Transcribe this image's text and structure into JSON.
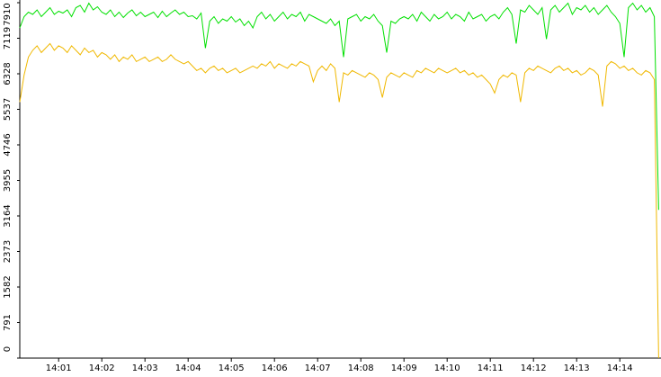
{
  "chart_data": {
    "type": "line",
    "categories": [
      null,
      null,
      null,
      null,
      null,
      null,
      null,
      null,
      null,
      "14:01",
      null,
      null,
      null,
      null,
      null,
      null,
      null,
      null,
      null,
      "14:02",
      null,
      null,
      null,
      null,
      null,
      null,
      null,
      null,
      null,
      "14:03",
      null,
      null,
      null,
      null,
      null,
      null,
      null,
      null,
      null,
      "14:04",
      null,
      null,
      null,
      null,
      null,
      null,
      null,
      null,
      null,
      "14:05",
      null,
      null,
      null,
      null,
      null,
      null,
      null,
      null,
      null,
      "14:06",
      null,
      null,
      null,
      null,
      null,
      null,
      null,
      null,
      null,
      "14:07",
      null,
      null,
      null,
      null,
      null,
      null,
      null,
      null,
      null,
      "14:08",
      null,
      null,
      null,
      null,
      null,
      null,
      null,
      null,
      null,
      "14:09",
      null,
      null,
      null,
      null,
      null,
      null,
      null,
      null,
      null,
      "14:10",
      null,
      null,
      null,
      null,
      null,
      null,
      null,
      null,
      null,
      "14:11",
      null,
      null,
      null,
      null,
      null,
      null,
      null,
      null,
      null,
      "14:12",
      null,
      null,
      null,
      null,
      null,
      null,
      null,
      null,
      null,
      "14:13",
      null,
      null,
      null,
      null,
      null,
      null,
      null,
      null,
      null,
      "14:14",
      null,
      null,
      null,
      null,
      null,
      null,
      null,
      null,
      null
    ],
    "series": [
      {
        "color": "#00e000",
        "values": [
          7350,
          7600,
          7700,
          7650,
          7750,
          7600,
          7700,
          7800,
          7650,
          7720,
          7680,
          7750,
          7600,
          7800,
          7850,
          7700,
          7900,
          7750,
          7820,
          7700,
          7650,
          7750,
          7600,
          7700,
          7580,
          7680,
          7750,
          7620,
          7700,
          7600,
          7650,
          7700,
          7580,
          7720,
          7600,
          7680,
          7750,
          7650,
          7700,
          7600,
          7620,
          7550,
          7680,
          6900,
          7500,
          7600,
          7450,
          7550,
          7500,
          7600,
          7480,
          7550,
          7400,
          7500,
          7350,
          7600,
          7700,
          7550,
          7650,
          7500,
          7600,
          7700,
          7550,
          7650,
          7600,
          7700,
          7500,
          7650,
          7600,
          7550,
          7500,
          7450,
          7550,
          7400,
          7500,
          6700,
          7550,
          7600,
          7650,
          7500,
          7600,
          7550,
          7650,
          7500,
          7400,
          6800,
          7500,
          7450,
          7550,
          7600,
          7550,
          7650,
          7500,
          7700,
          7600,
          7500,
          7650,
          7550,
          7600,
          7700,
          7550,
          7650,
          7600,
          7500,
          7700,
          7550,
          7600,
          7650,
          7500,
          7600,
          7650,
          7550,
          7700,
          7800,
          7650,
          7000,
          7750,
          7700,
          7850,
          7750,
          7650,
          7800,
          7100,
          7750,
          7850,
          7700,
          7800,
          7900,
          7650,
          7800,
          7750,
          7850,
          7700,
          7800,
          7650,
          7750,
          7850,
          7700,
          7600,
          7450,
          6700,
          7800,
          7900,
          7750,
          7850,
          7700,
          7800,
          7600,
          3300
        ]
      },
      {
        "color": "#f0b800",
        "values": [
          5700,
          6300,
          6700,
          6850,
          6950,
          6800,
          6900,
          7000,
          6850,
          6950,
          6900,
          6800,
          6950,
          6850,
          6750,
          6900,
          6800,
          6850,
          6700,
          6800,
          6750,
          6650,
          6750,
          6600,
          6700,
          6650,
          6750,
          6600,
          6650,
          6700,
          6600,
          6650,
          6700,
          6600,
          6650,
          6750,
          6650,
          6600,
          6550,
          6600,
          6500,
          6400,
          6450,
          6350,
          6450,
          6500,
          6400,
          6450,
          6350,
          6400,
          6450,
          6350,
          6400,
          6450,
          6500,
          6450,
          6550,
          6500,
          6600,
          6450,
          6550,
          6500,
          6450,
          6550,
          6500,
          6600,
          6550,
          6500,
          6150,
          6400,
          6500,
          6400,
          6550,
          6450,
          5700,
          6350,
          6300,
          6400,
          6350,
          6300,
          6250,
          6350,
          6300,
          6200,
          5800,
          6250,
          6350,
          6300,
          6250,
          6350,
          6300,
          6250,
          6400,
          6350,
          6450,
          6400,
          6350,
          6450,
          6400,
          6350,
          6400,
          6450,
          6350,
          6400,
          6300,
          6350,
          6250,
          6300,
          6200,
          6100,
          5900,
          6200,
          6300,
          6250,
          6350,
          6300,
          5700,
          6350,
          6450,
          6400,
          6500,
          6450,
          6400,
          6350,
          6450,
          6500,
          6400,
          6450,
          6350,
          6400,
          6300,
          6350,
          6450,
          6400,
          6300,
          5600,
          6500,
          6600,
          6550,
          6450,
          6500,
          6400,
          6450,
          6350,
          6300,
          6400,
          6350,
          6200,
          0
        ]
      }
    ],
    "ylim": [
      0,
      7910
    ],
    "yticks": [
      0,
      791,
      1582,
      2373,
      3164,
      3955,
      4746,
      5537,
      6328,
      7119,
      7910
    ]
  }
}
